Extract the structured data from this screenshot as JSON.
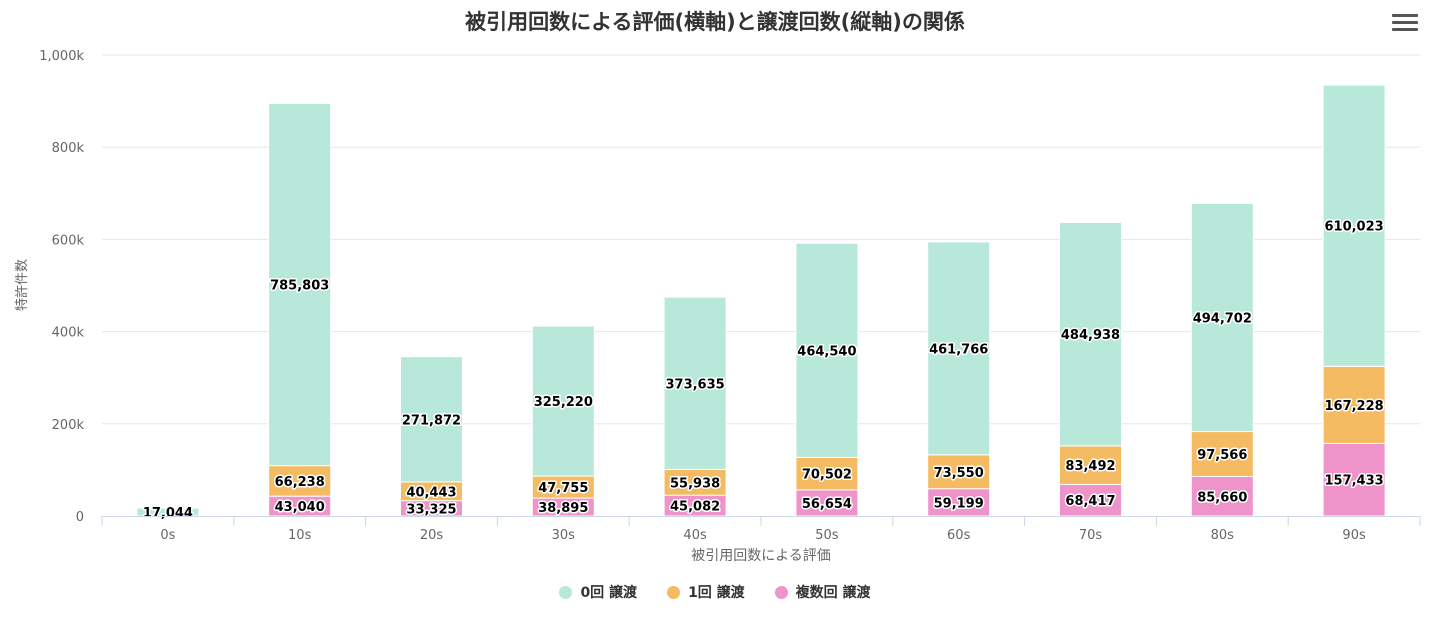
{
  "chart_data": {
    "type": "bar",
    "stacked": true,
    "title": "被引用回数による評価(横軸)と譲渡回数(縦軸)の関係",
    "xlabel": "被引用回数による評価",
    "ylabel": "特許件数",
    "categories": [
      "0s",
      "10s",
      "20s",
      "30s",
      "40s",
      "50s",
      "60s",
      "70s",
      "80s",
      "90s"
    ],
    "ylim": [
      0,
      1000000
    ],
    "yticks": [
      0,
      200000,
      400000,
      600000,
      800000,
      1000000
    ],
    "ytick_labels": [
      "0",
      "200k",
      "400k",
      "600k",
      "800k",
      "1,000k"
    ],
    "grid": true,
    "legend_position": "bottom-center",
    "series": [
      {
        "name": "0回 譲渡",
        "color": "#b8e8da",
        "values": [
          17044,
          785803,
          271872,
          325220,
          373635,
          464540,
          461766,
          484938,
          494702,
          610023
        ],
        "labels": [
          "17,044",
          "785,803",
          "271,872",
          "325,220",
          "373,635",
          "464,540",
          "461,766",
          "484,938",
          "494,702",
          "610,023"
        ]
      },
      {
        "name": "1回 譲渡",
        "color": "#f5bb63",
        "values": [
          0,
          66238,
          40443,
          47755,
          55938,
          70502,
          73550,
          83492,
          97566,
          167228
        ],
        "labels": [
          "",
          "66,238",
          "40,443",
          "47,755",
          "55,938",
          "70,502",
          "73,550",
          "83,492",
          "97,566",
          "167,228"
        ]
      },
      {
        "name": "複数回 譲渡",
        "color": "#ef93cb",
        "values": [
          0,
          43040,
          33325,
          38895,
          45082,
          56654,
          59199,
          68417,
          85660,
          157433
        ],
        "labels": [
          "",
          "43,040",
          "33,325",
          "38,895",
          "45,082",
          "56,654",
          "59,199",
          "68,417",
          "85,660",
          "157,433"
        ]
      }
    ]
  },
  "menu": {
    "icon": "hamburger-menu-icon"
  }
}
